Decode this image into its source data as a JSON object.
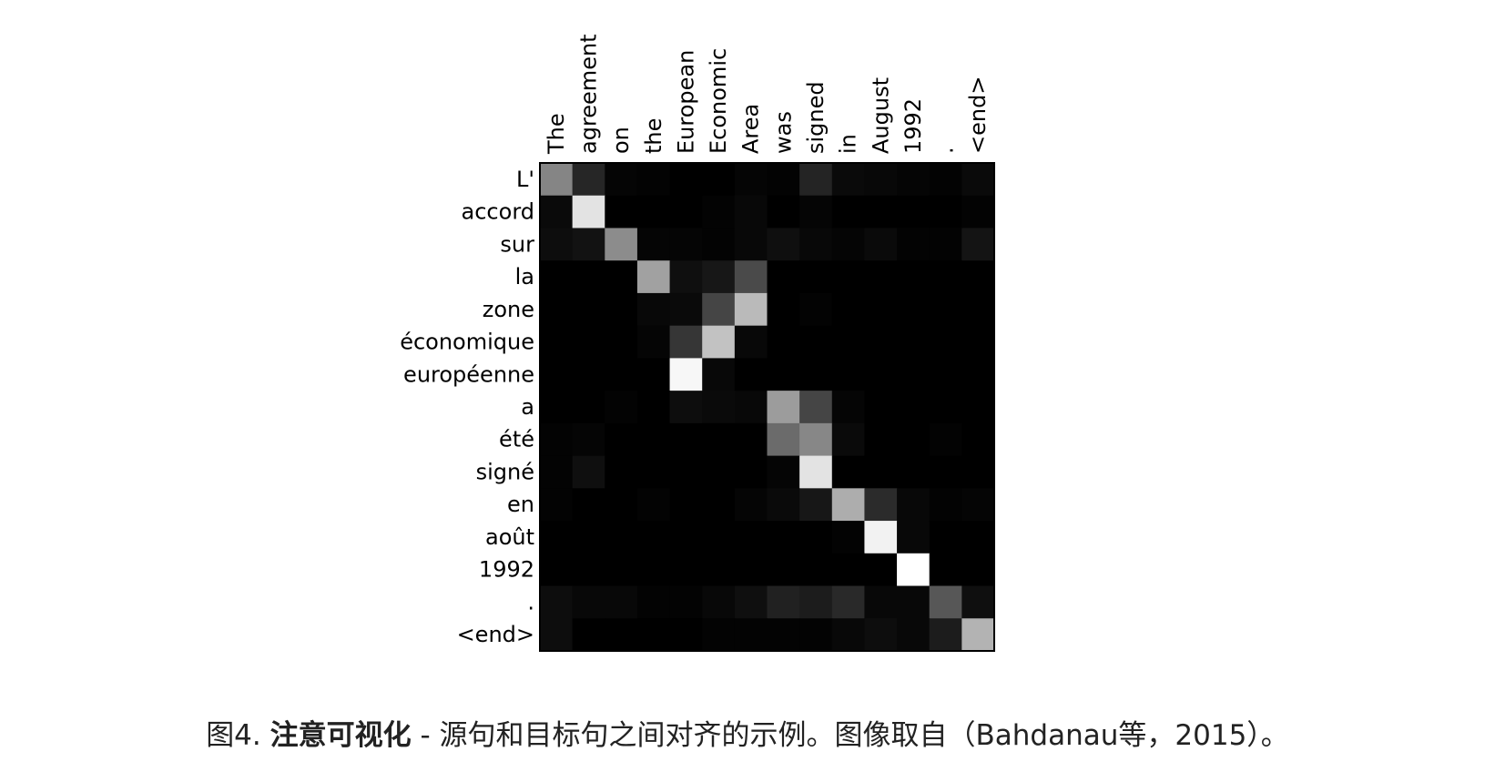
{
  "chart_data": {
    "type": "heatmap",
    "x_labels": [
      "The",
      "agreement",
      "on",
      "the",
      "European",
      "Economic",
      "Area",
      "was",
      "signed",
      "in",
      "August",
      "1992",
      ".",
      "<end>"
    ],
    "y_labels": [
      "L'",
      "accord",
      "sur",
      "la",
      "zone",
      "économique",
      "européenne",
      "a",
      "été",
      "signé",
      "en",
      "août",
      "1992",
      ".",
      "<end>"
    ],
    "values": [
      [
        0.52,
        0.15,
        0.02,
        0.01,
        0.0,
        0.0,
        0.02,
        0.01,
        0.14,
        0.04,
        0.03,
        0.02,
        0.01,
        0.04
      ],
      [
        0.04,
        0.89,
        0.0,
        0.0,
        0.0,
        0.01,
        0.03,
        0.0,
        0.02,
        0.0,
        0.0,
        0.0,
        0.0,
        0.01
      ],
      [
        0.05,
        0.07,
        0.55,
        0.02,
        0.02,
        0.01,
        0.03,
        0.06,
        0.03,
        0.02,
        0.04,
        0.01,
        0.01,
        0.08
      ],
      [
        0.0,
        0.0,
        0.0,
        0.63,
        0.06,
        0.09,
        0.29,
        0.0,
        0.0,
        0.0,
        0.0,
        0.0,
        0.0,
        0.0
      ],
      [
        0.0,
        0.0,
        0.0,
        0.03,
        0.04,
        0.27,
        0.73,
        0.0,
        0.01,
        0.0,
        0.0,
        0.0,
        0.0,
        0.0
      ],
      [
        0.0,
        0.0,
        0.0,
        0.02,
        0.21,
        0.76,
        0.03,
        0.0,
        0.0,
        0.0,
        0.0,
        0.0,
        0.0,
        0.0
      ],
      [
        0.0,
        0.0,
        0.0,
        0.0,
        0.97,
        0.03,
        0.0,
        0.0,
        0.0,
        0.0,
        0.0,
        0.0,
        0.0,
        0.0
      ],
      [
        0.0,
        0.0,
        0.01,
        0.0,
        0.05,
        0.04,
        0.03,
        0.61,
        0.27,
        0.02,
        0.0,
        0.0,
        0.0,
        0.0
      ],
      [
        0.01,
        0.02,
        0.0,
        0.0,
        0.0,
        0.0,
        0.0,
        0.42,
        0.53,
        0.04,
        0.0,
        0.0,
        0.01,
        0.0
      ],
      [
        0.01,
        0.06,
        0.0,
        0.0,
        0.0,
        0.0,
        0.0,
        0.02,
        0.89,
        0.0,
        0.0,
        0.0,
        0.0,
        0.0
      ],
      [
        0.01,
        0.0,
        0.0,
        0.01,
        0.0,
        0.0,
        0.02,
        0.04,
        0.09,
        0.68,
        0.17,
        0.03,
        0.01,
        0.02
      ],
      [
        0.0,
        0.0,
        0.0,
        0.0,
        0.0,
        0.0,
        0.0,
        0.0,
        0.0,
        0.01,
        0.95,
        0.03,
        0.0,
        0.0
      ],
      [
        0.0,
        0.0,
        0.0,
        0.0,
        0.0,
        0.0,
        0.0,
        0.0,
        0.0,
        0.0,
        0.0,
        1.0,
        0.0,
        0.0
      ],
      [
        0.05,
        0.03,
        0.03,
        0.01,
        0.01,
        0.03,
        0.06,
        0.13,
        0.11,
        0.16,
        0.03,
        0.03,
        0.34,
        0.06
      ],
      [
        0.05,
        0.0,
        0.0,
        0.0,
        0.0,
        0.01,
        0.01,
        0.01,
        0.01,
        0.03,
        0.05,
        0.03,
        0.11,
        0.7
      ]
    ],
    "value_range": [
      0,
      1
    ],
    "colormap": "gray",
    "axis_frame_color": "#000000",
    "label_color": "#000000",
    "caption": {
      "prefix": "图4.",
      "title": "注意可视化",
      "text": " - 源句和目标句之间对齐的示例。图像取自（Bahdanau等，2015）。"
    }
  }
}
